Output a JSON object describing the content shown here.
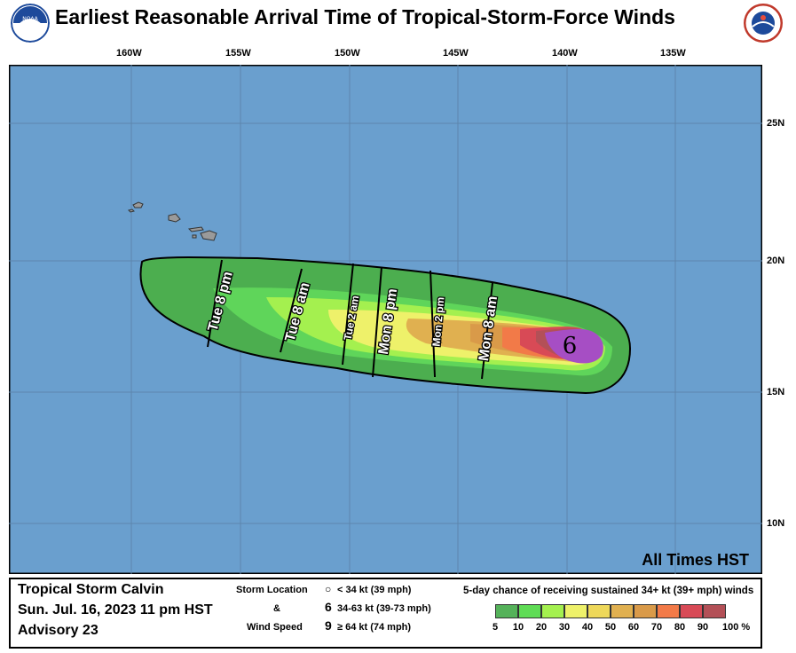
{
  "title": "Earliest Reasonable Arrival Time of Tropical-Storm-Force Winds",
  "logos": {
    "left": "NOAA",
    "right": "NATIONAL WEATHER SERVICE"
  },
  "map": {
    "lon_labels": [
      "160W",
      "155W",
      "150W",
      "145W",
      "140W",
      "135W"
    ],
    "lat_labels": [
      "25N",
      "20N",
      "15N",
      "10N"
    ],
    "time_labels": [
      "Tue 8 pm",
      "Tue 8 am",
      "Tue 2 am",
      "Mon 8 pm",
      "Mon 2 pm",
      "Mon 8 am"
    ],
    "times_note": "All Times HST",
    "storm_symbol": "6"
  },
  "storm": {
    "name": "Tropical Storm Calvin",
    "datetime": "Sun. Jul. 16, 2023  11 pm HST",
    "advisory": "Advisory 23"
  },
  "symbol_legend": {
    "line1": "Storm Location",
    "amp": "&",
    "line2": "Wind Speed",
    "items": [
      {
        "glyph": "○",
        "label": "< 34 kt (39 mph)"
      },
      {
        "glyph": "6",
        "label": "34-63 kt (39-73 mph)"
      },
      {
        "glyph": "9",
        "label": "≥ 64 kt (74 mph)"
      }
    ]
  },
  "probability_legend": {
    "title": "5-day chance of receiving sustained 34+ kt (39+ mph) winds",
    "labels": [
      "5",
      "10",
      "20",
      "30",
      "40",
      "50",
      "60",
      "70",
      "80",
      "90",
      "100 %"
    ],
    "colors": [
      "#55b25a",
      "#5fdc55",
      "#a4f04f",
      "#eef16a",
      "#eed85a",
      "#e0b050",
      "#d99a49",
      "#f27a48",
      "#d84a56",
      "#b35057",
      "#a64ec4"
    ]
  },
  "colors": {
    "ocean": "#6a9fce",
    "land": "#9a9a9a"
  }
}
